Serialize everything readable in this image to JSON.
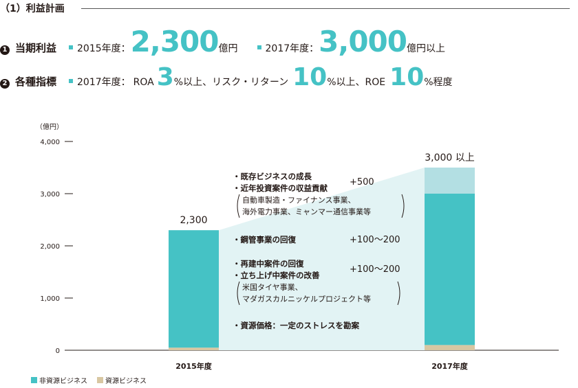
{
  "header": {
    "title": "（1）利益計画"
  },
  "targets": {
    "row1": {
      "number": "1",
      "label": "当期利益",
      "item1": {
        "year": "2015年度：",
        "value": "2,300",
        "unit": "億円"
      },
      "item2": {
        "year": "2017年度：",
        "value": "3,000",
        "unit": "億円以上"
      }
    },
    "row2": {
      "number": "2",
      "label": "各種指標",
      "year": "2017年度：",
      "roa_label": "ROA",
      "roa_value": "3",
      "roa_unit": "%以上、リスク・リターン",
      "rr_value": "10",
      "rr_unit": "%以上、ROE",
      "roe_value": "10",
      "roe_unit": "%程度"
    }
  },
  "colors": {
    "non_resource": "#45c2c5",
    "resource": "#d8c7a2",
    "upside": "#b3dfe3",
    "band": "#e2f3f4"
  },
  "chart_data": {
    "type": "bar",
    "stacked": true,
    "unit_label": "（億円）",
    "categories": [
      "2015年度",
      "2017年度"
    ],
    "series": [
      {
        "name": "資源ビジネス",
        "values": [
          50,
          100
        ]
      },
      {
        "name": "非資源ビジネス",
        "values": [
          2250,
          2900
        ]
      },
      {
        "name": "",
        "values": [
          0,
          500
        ]
      }
    ],
    "y_ticks": [
      "4,000",
      "3,000",
      "2,000",
      "1,000",
      "0"
    ],
    "y_values": [
      4000,
      3000,
      2000,
      1000,
      0
    ],
    "ylim": [
      0,
      4000
    ],
    "data_labels": [
      "2,300",
      "3,000 以上"
    ],
    "annotations": [
      {
        "lines": [
          "・既存ビジネスの成長",
          "・近年投資案件の収益貢献"
        ],
        "value": "+500",
        "sub": [
          "自動車製造・ファイナンス事業、",
          "海外電力事業、ミャンマー通信事業等"
        ]
      },
      {
        "lines": [
          "・鋼管事業の回復"
        ],
        "value": "+100〜200",
        "sub": []
      },
      {
        "lines": [
          "・再建中案件の回復",
          "・立ち上げ中案件の改善"
        ],
        "value": "+100〜200",
        "sub": [
          "米国タイヤ事業、",
          "マダガスカルニッケルプロジェクト等"
        ]
      },
      {
        "lines": [
          "・資源価格：一定のストレスを勘案"
        ],
        "value": "",
        "sub": []
      }
    ],
    "legend": [
      "非資源ビジネス",
      "資源ビジネス"
    ]
  }
}
